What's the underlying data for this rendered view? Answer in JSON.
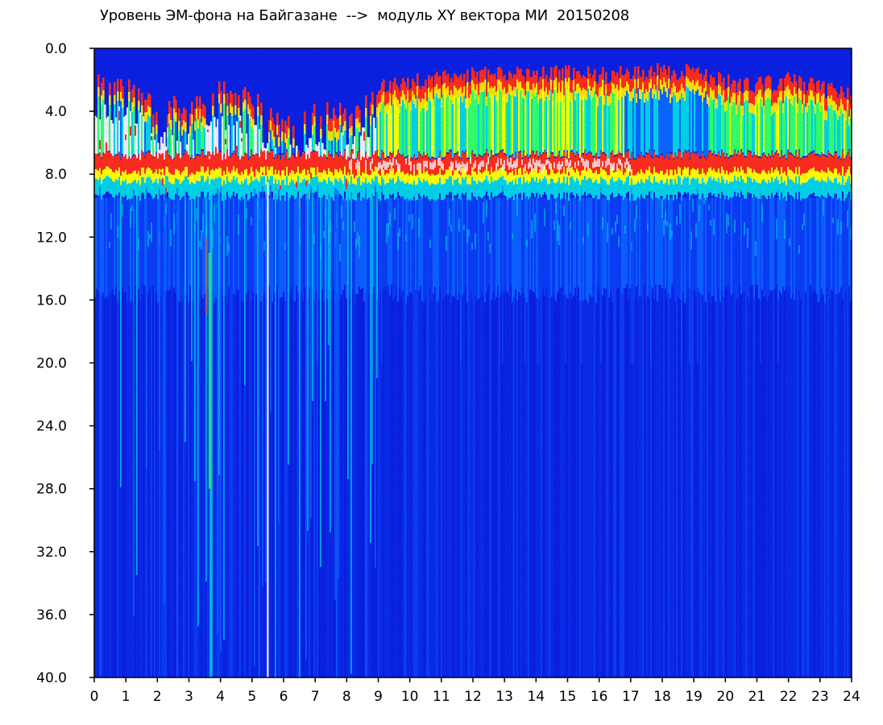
{
  "chart_data": {
    "type": "heatmap",
    "title": "Уровень ЭМ-фона на Байгазане  -->  модуль XY вектора МИ  20150208",
    "x_ticks": [
      "0",
      "1",
      "2",
      "3",
      "4",
      "5",
      "6",
      "7",
      "8",
      "9",
      "10",
      "11",
      "12",
      "13",
      "14",
      "15",
      "16",
      "17",
      "18",
      "19",
      "20",
      "21",
      "22",
      "23",
      "24"
    ],
    "y_ticks": [
      "0.0",
      "4.0",
      "8.0",
      "12.0",
      "16.0",
      "20.0",
      "24.0",
      "28.0",
      "32.0",
      "36.0",
      "40.0"
    ],
    "xlim": [
      0,
      24
    ],
    "ylim": [
      0,
      40
    ],
    "y_inverted": true,
    "colormap": [
      "#0a1ee0",
      "#0a64ff",
      "#00d2e6",
      "#33ff66",
      "#ffff00",
      "#ff2a1a",
      "#ffffff"
    ],
    "background_color": "#0a1ee0",
    "energetic_band_top": [
      [
        0,
        1.5
      ],
      [
        0.5,
        1.6
      ],
      [
        1,
        1.5
      ],
      [
        1.5,
        2.0
      ],
      [
        2,
        3.5
      ],
      [
        2.5,
        3.0
      ],
      [
        3,
        3.0
      ],
      [
        3.5,
        2.8
      ],
      [
        4,
        2.0
      ],
      [
        4.5,
        2.2
      ],
      [
        5,
        2.5
      ],
      [
        5.5,
        3.5
      ],
      [
        6,
        4.0
      ],
      [
        6.5,
        4.2
      ],
      [
        7,
        3.0
      ],
      [
        7.5,
        3.5
      ],
      [
        8,
        3.2
      ],
      [
        8.5,
        3.0
      ],
      [
        9,
        2.0
      ],
      [
        10,
        1.5
      ],
      [
        11,
        1.3
      ],
      [
        12,
        1.2
      ],
      [
        13,
        1.1
      ],
      [
        14,
        1.1
      ],
      [
        15,
        1.0
      ],
      [
        16,
        1.1
      ],
      [
        17,
        1.0
      ],
      [
        18,
        0.9
      ],
      [
        19,
        0.9
      ],
      [
        20,
        1.6
      ],
      [
        21,
        1.8
      ],
      [
        22,
        1.5
      ],
      [
        23,
        2.0
      ],
      [
        24,
        2.5
      ]
    ],
    "energetic_band_bottom": [
      [
        0,
        9.0
      ],
      [
        1,
        9.0
      ],
      [
        2,
        9.0
      ],
      [
        3,
        9.0
      ],
      [
        4,
        9.0
      ],
      [
        5,
        9.0
      ],
      [
        6,
        9.0
      ],
      [
        7,
        9.0
      ],
      [
        8,
        9.0
      ],
      [
        9,
        9.0
      ],
      [
        10,
        9.0
      ],
      [
        11,
        9.0
      ],
      [
        12,
        9.0
      ],
      [
        13,
        9.0
      ],
      [
        14,
        9.0
      ],
      [
        15,
        9.0
      ],
      [
        16,
        9.0
      ],
      [
        17,
        9.0
      ],
      [
        18,
        9.0
      ],
      [
        19,
        9.0
      ],
      [
        20,
        9.0
      ],
      [
        21,
        9.0
      ],
      [
        22,
        9.0
      ],
      [
        23,
        9.0
      ],
      [
        24,
        9.0
      ]
    ],
    "secondary_band": [
      9.5,
      15.0
    ],
    "white_line_x": 5.5,
    "grid": false
  }
}
